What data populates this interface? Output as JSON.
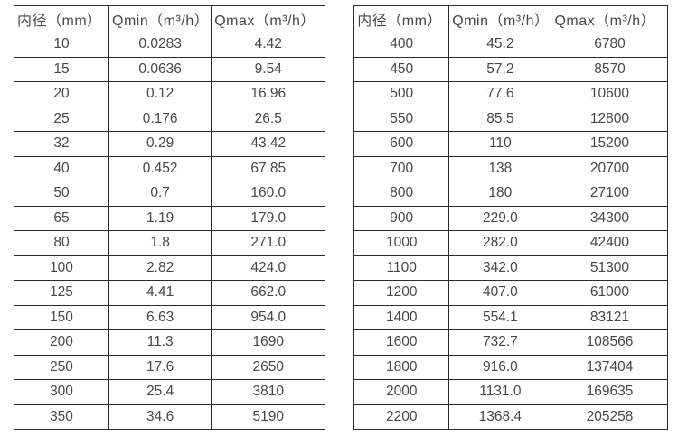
{
  "colors": {
    "table_border": "#2b2b2b",
    "table_text": "#474747",
    "background": "#ffffff"
  },
  "tables": [
    {
      "name": "small-diameters",
      "columns": [
        "内径（mm）",
        "Qmin（m³/h）",
        "Qmax（m³/h）"
      ],
      "rows": [
        [
          "10",
          "0.0283",
          "4.42"
        ],
        [
          "15",
          "0.0636",
          "9.54"
        ],
        [
          "20",
          "0.12",
          "16.96"
        ],
        [
          "25",
          "0.176",
          "26.5"
        ],
        [
          "32",
          "0.29",
          "43.42"
        ],
        [
          "40",
          "0.452",
          "67.85"
        ],
        [
          "50",
          "0.7",
          "160.0"
        ],
        [
          "65",
          "1.19",
          "179.0"
        ],
        [
          "80",
          "1.8",
          "271.0"
        ],
        [
          "100",
          "2.82",
          "424.0"
        ],
        [
          "125",
          "4.41",
          "662.0"
        ],
        [
          "150",
          "6.63",
          "954.0"
        ],
        [
          "200",
          "11.3",
          "1690"
        ],
        [
          "250",
          "17.6",
          "2650"
        ],
        [
          "300",
          "25.4",
          "3810"
        ],
        [
          "350",
          "34.6",
          "5190"
        ]
      ]
    },
    {
      "name": "large-diameters",
      "columns": [
        "内径（mm）",
        "Qmin（m³/h）",
        "Qmax（m³/h）"
      ],
      "rows": [
        [
          "400",
          "45.2",
          "6780"
        ],
        [
          "450",
          "57.2",
          "8570"
        ],
        [
          "500",
          "77.6",
          "10600"
        ],
        [
          "550",
          "85.5",
          "12800"
        ],
        [
          "600",
          "110",
          "15200"
        ],
        [
          "700",
          "138",
          "20700"
        ],
        [
          "800",
          "180",
          "27100"
        ],
        [
          "900",
          "229.0",
          "34300"
        ],
        [
          "1000",
          "282.0",
          "42400"
        ],
        [
          "1100",
          "342.0",
          "51300"
        ],
        [
          "1200",
          "407.0",
          "61000"
        ],
        [
          "1400",
          "554.1",
          "83121"
        ],
        [
          "1600",
          "732.7",
          "108566"
        ],
        [
          "1800",
          "916.0",
          "137404"
        ],
        [
          "2000",
          "1131.0",
          "169635"
        ],
        [
          "2200",
          "1368.4",
          "205258"
        ]
      ]
    }
  ]
}
